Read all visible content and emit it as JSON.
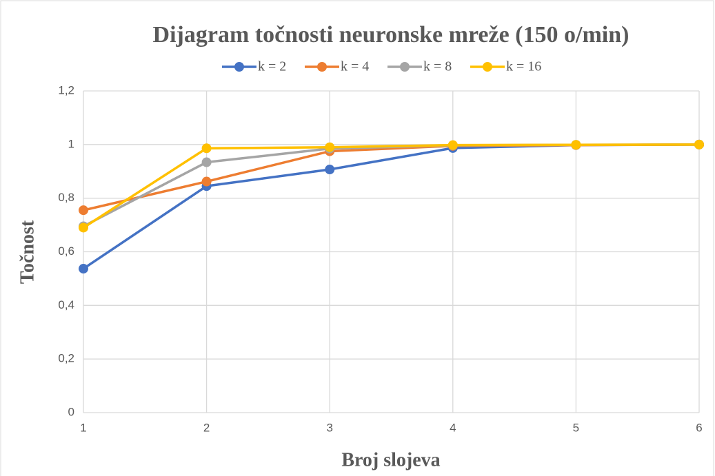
{
  "chart_data": {
    "type": "line",
    "title": "Dijagram točnosti neuronske mreže (150 o/min)",
    "x_label": "Broj slojeva",
    "y_label": "Točnost",
    "x": [
      1,
      2,
      3,
      4,
      5,
      6
    ],
    "xlim": [
      1,
      6
    ],
    "xticks": [
      1,
      2,
      3,
      4,
      5,
      6
    ],
    "ylim": [
      0,
      1.2
    ],
    "yticks": [
      0,
      {
        "value": 0.2,
        "label": "0,2"
      },
      {
        "value": 0.4,
        "label": "0,4"
      },
      {
        "value": 0.6,
        "label": "0,6"
      },
      {
        "value": 0.8,
        "label": "0,8"
      },
      1,
      {
        "value": 1.2,
        "label": "1,2"
      }
    ],
    "grid": true,
    "legend": "top",
    "series": [
      {
        "name": "k = 2",
        "color": "#4472c4",
        "values": [
          0.537,
          0.845,
          0.907,
          0.987,
          0.998,
          1.0
        ]
      },
      {
        "name": "k = 4",
        "color": "#ed7d31",
        "values": [
          0.755,
          0.862,
          0.975,
          0.995,
          0.998,
          1.0
        ]
      },
      {
        "name": "k = 8",
        "color": "#a5a5a5",
        "values": [
          0.695,
          0.934,
          0.985,
          0.997,
          0.999,
          1.0
        ]
      },
      {
        "name": "k = 16",
        "color": "#ffc000",
        "values": [
          0.69,
          0.986,
          0.99,
          0.998,
          0.999,
          1.0
        ]
      }
    ]
  }
}
